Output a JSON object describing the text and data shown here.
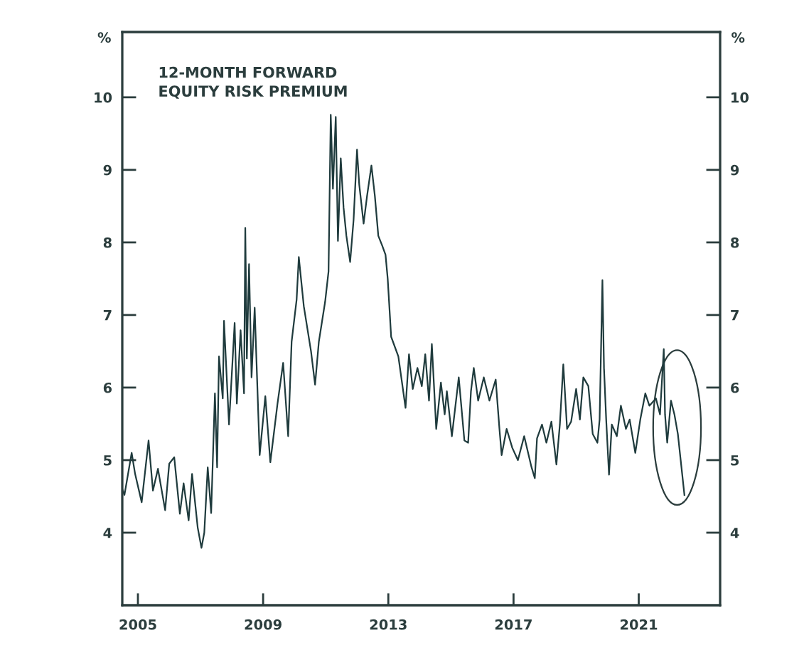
{
  "chart_data": {
    "type": "line",
    "title": "12-MONTH FORWARD\nEQUITY RISK PREMIUM",
    "ylabel": "%",
    "y2label": "%",
    "x": [
      2004.5,
      2004.57,
      2004.8,
      2004.91,
      2005.12,
      2005.34,
      2005.48,
      2005.64,
      2005.87,
      2006.0,
      2006.16,
      2006.34,
      2006.46,
      2006.62,
      2006.73,
      2006.91,
      2007.03,
      2007.12,
      2007.23,
      2007.34,
      2007.46,
      2007.53,
      2007.59,
      2007.71,
      2007.75,
      2007.91,
      2008.09,
      2008.16,
      2008.28,
      2008.39,
      2008.43,
      2008.48,
      2008.55,
      2008.63,
      2008.73,
      2008.89,
      2009.07,
      2009.23,
      2009.46,
      2009.64,
      2009.8,
      2009.91,
      2010.07,
      2010.14,
      2010.3,
      2010.53,
      2010.66,
      2010.78,
      2010.98,
      2011.09,
      2011.16,
      2011.23,
      2011.32,
      2011.39,
      2011.48,
      2011.57,
      2011.66,
      2011.78,
      2011.89,
      2012.0,
      2012.07,
      2012.21,
      2012.32,
      2012.46,
      2012.57,
      2012.68,
      2012.8,
      2012.91,
      2012.98,
      2013.09,
      2013.32,
      2013.55,
      2013.66,
      2013.78,
      2013.93,
      2014.07,
      2014.18,
      2014.3,
      2014.39,
      2014.53,
      2014.68,
      2014.8,
      2014.87,
      2015.03,
      2015.25,
      2015.43,
      2015.55,
      2015.64,
      2015.73,
      2015.87,
      2016.05,
      2016.23,
      2016.43,
      2016.55,
      2016.62,
      2016.78,
      2016.96,
      2017.14,
      2017.34,
      2017.57,
      2017.68,
      2017.75,
      2017.91,
      2018.05,
      2018.21,
      2018.37,
      2018.48,
      2018.59,
      2018.71,
      2018.84,
      2019.0,
      2019.12,
      2019.23,
      2019.39,
      2019.53,
      2019.68,
      2019.75,
      2019.84,
      2019.89,
      2019.96,
      2020.05,
      2020.14,
      2020.3,
      2020.43,
      2020.59,
      2020.71,
      2020.89,
      2021.05,
      2021.21,
      2021.34,
      2021.55,
      2021.68,
      2021.8,
      2021.84,
      2021.91,
      2022.03,
      2022.14,
      2022.25,
      2022.34,
      2022.46
    ],
    "series": [
      {
        "color": "#1f3b3d",
        "values": [
          4.6,
          4.52,
          5.1,
          4.81,
          4.42,
          5.27,
          4.58,
          4.88,
          4.31,
          4.95,
          5.04,
          4.26,
          4.68,
          4.17,
          4.81,
          4.07,
          3.79,
          4.0,
          4.9,
          4.27,
          5.92,
          4.9,
          6.43,
          5.85,
          6.92,
          5.49,
          6.89,
          5.78,
          6.79,
          5.92,
          8.2,
          6.4,
          7.7,
          6.14,
          7.1,
          5.07,
          5.88,
          4.97,
          5.78,
          6.34,
          5.33,
          6.63,
          7.21,
          7.8,
          7.12,
          6.5,
          6.04,
          6.63,
          7.18,
          7.6,
          9.76,
          8.74,
          9.73,
          8.02,
          9.16,
          8.48,
          8.09,
          7.73,
          8.31,
          9.28,
          8.8,
          8.26,
          8.64,
          9.06,
          8.64,
          8.09,
          7.96,
          7.83,
          7.5,
          6.7,
          6.43,
          5.72,
          6.46,
          5.98,
          6.27,
          6.02,
          6.46,
          5.82,
          6.6,
          5.43,
          6.07,
          5.63,
          5.95,
          5.33,
          6.14,
          5.27,
          5.24,
          5.95,
          6.27,
          5.82,
          6.14,
          5.82,
          6.11,
          5.43,
          5.07,
          5.43,
          5.17,
          5.0,
          5.33,
          4.91,
          4.75,
          5.3,
          5.49,
          5.24,
          5.53,
          4.94,
          5.49,
          6.32,
          5.43,
          5.53,
          5.98,
          5.56,
          6.14,
          6.02,
          5.36,
          5.24,
          5.56,
          7.48,
          6.27,
          5.56,
          4.8,
          5.49,
          5.33,
          5.75,
          5.43,
          5.56,
          5.1,
          5.56,
          5.92,
          5.75,
          5.85,
          5.63,
          6.53,
          5.63,
          5.24,
          5.82,
          5.63,
          5.36,
          5.0,
          4.52
        ]
      }
    ],
    "xlim": [
      2004.5,
      2023.6
    ],
    "xticks": [
      2005,
      2009,
      2013,
      2017,
      2021
    ],
    "ylim": [
      3,
      10.9
    ],
    "yticks": [
      4,
      5,
      6,
      7,
      8,
      9,
      10
    ],
    "y2lim": [
      3,
      10.9
    ],
    "y2ticks": [
      4,
      5,
      6,
      7,
      8,
      9,
      10
    ],
    "line_style": "solid",
    "grid": false
  }
}
